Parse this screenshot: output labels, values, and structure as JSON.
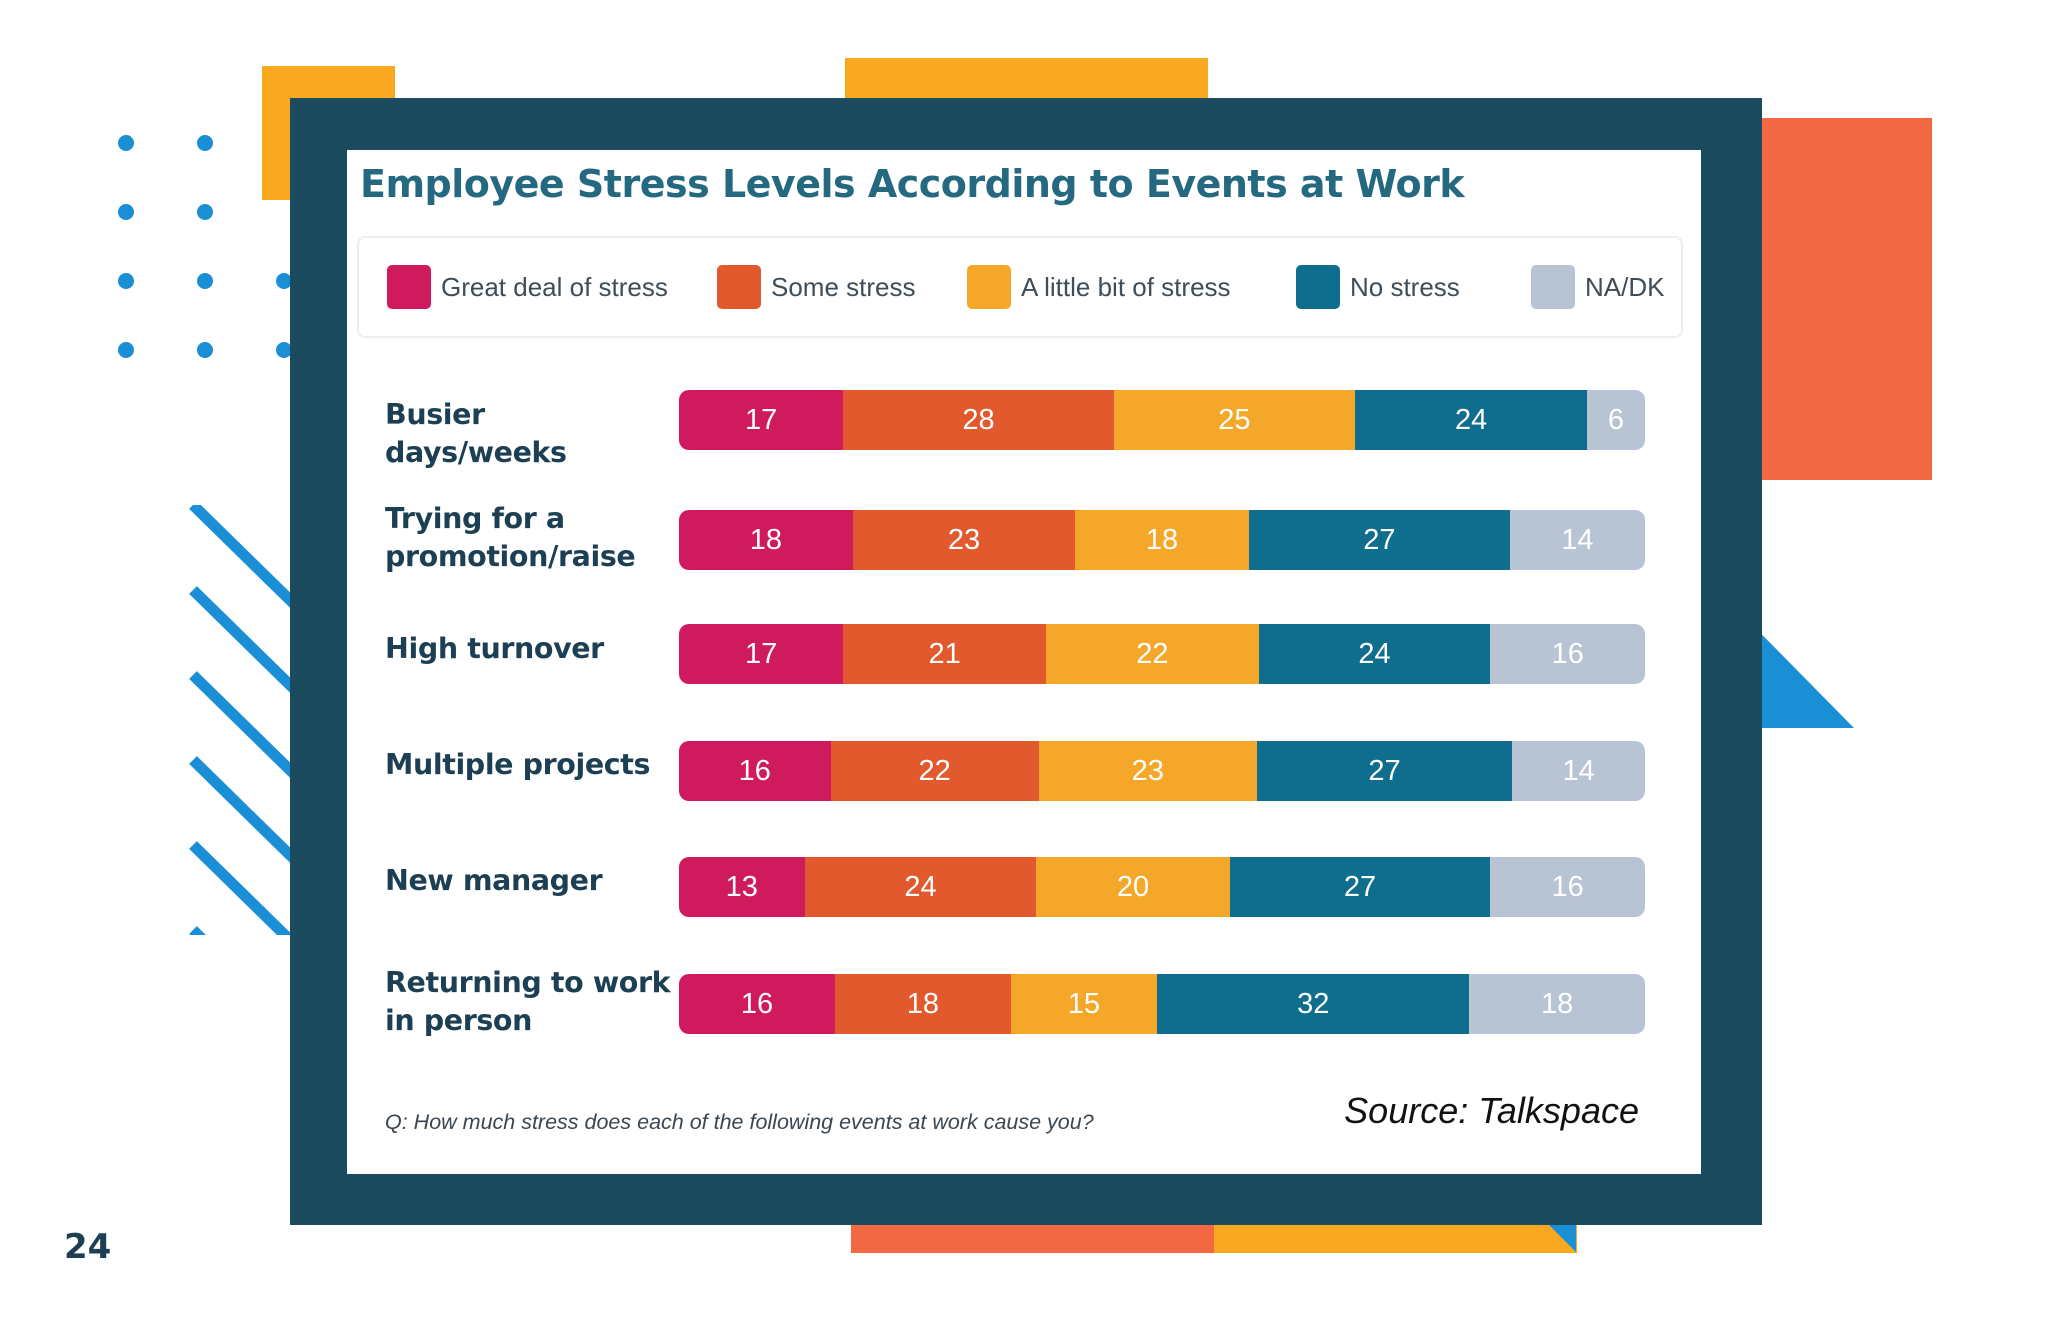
{
  "page_number": "24",
  "colors": {
    "great": "#d01a5e",
    "some": "#e3592e",
    "little": "#f5a72a",
    "none": "#0f6e8e",
    "na": "#b8c3d4",
    "frame": "#1c4a5f",
    "accent_orange": "#f26843",
    "accent_yellow": "#f8a91f",
    "accent_blue": "#1a8fd6"
  },
  "chart_data": {
    "type": "bar",
    "orientation": "horizontal",
    "stacked": true,
    "title": "Employee Stress Levels According to Events at Work",
    "categories": [
      "Busier days/weeks",
      "Trying for a promotion/raise",
      "High turnover",
      "Multiple projects",
      "New manager",
      "Returning to work in person"
    ],
    "series": [
      {
        "name": "Great deal of stress",
        "key": "great",
        "values": [
          17,
          18,
          17,
          16,
          13,
          16
        ]
      },
      {
        "name": "Some stress",
        "key": "some",
        "values": [
          28,
          23,
          21,
          22,
          24,
          18
        ]
      },
      {
        "name": "A little bit of stress",
        "key": "little",
        "values": [
          25,
          18,
          22,
          23,
          20,
          15
        ]
      },
      {
        "name": "No stress",
        "key": "none",
        "values": [
          24,
          27,
          24,
          27,
          27,
          32
        ]
      },
      {
        "name": "NA/DK",
        "key": "na",
        "values": [
          6,
          14,
          16,
          14,
          16,
          18
        ]
      }
    ],
    "xlabel": "",
    "ylabel": "",
    "legend": "top",
    "footnote": "Q: How much stress does each of the following events at work cause you?",
    "source": "Source: Talkspace"
  }
}
